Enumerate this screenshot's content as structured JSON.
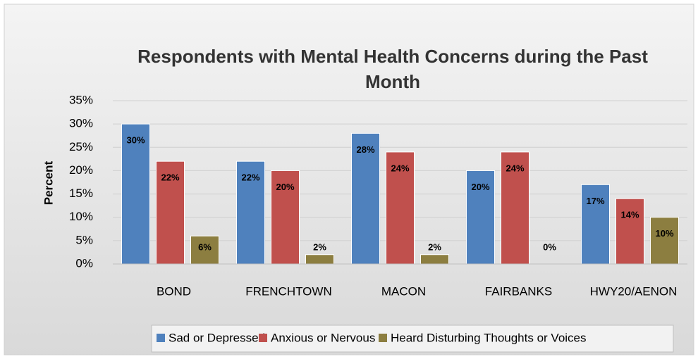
{
  "chart_data": {
    "type": "bar",
    "title": "Respondents with Mental Health Concerns during the Past Month",
    "y_label": "Percent",
    "categories": [
      "BOND",
      "FRENCHTOWN",
      "MACON",
      "FAIRBANKS",
      "HWY20/AENON"
    ],
    "series": [
      {
        "name": "Sad or Depressed",
        "color": "#4f81bd",
        "values": [
          30,
          22,
          28,
          20,
          17
        ],
        "value_labels": [
          "30%",
          "22%",
          "28%",
          "20%",
          "17%"
        ]
      },
      {
        "name": "Anxious or Nervous",
        "color": "#c0504d",
        "values": [
          22,
          20,
          24,
          24,
          14
        ],
        "value_labels": [
          "22%",
          "20%",
          "24%",
          "24%",
          "14%"
        ]
      },
      {
        "name": "Heard Disturbing Thoughts or Voices",
        "color": "#8c7e40",
        "values": [
          6,
          2,
          2,
          0,
          10
        ],
        "value_labels": [
          "6%",
          "2%",
          "2%",
          "0%",
          "10%"
        ]
      }
    ],
    "ylim": [
      0,
      35
    ],
    "yticks": [
      {
        "value": 0,
        "label": "0%"
      },
      {
        "value": 5,
        "label": "5%"
      },
      {
        "value": 10,
        "label": "10%"
      },
      {
        "value": 15,
        "label": "15%"
      },
      {
        "value": 20,
        "label": "20%"
      },
      {
        "value": 25,
        "label": "25%"
      },
      {
        "value": 30,
        "label": "30%"
      },
      {
        "value": 35,
        "label": "35%"
      }
    ],
    "grid": true,
    "legend": "bottom"
  }
}
